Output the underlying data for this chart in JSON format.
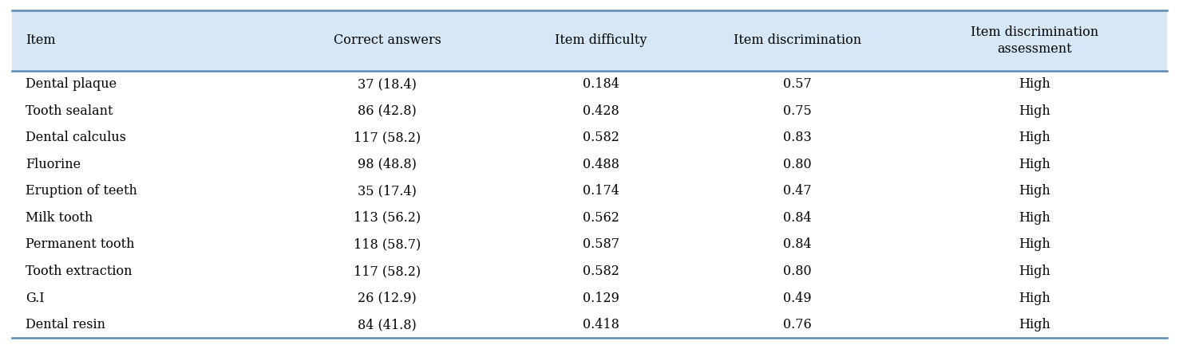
{
  "headers": [
    "Item",
    "Correct answers",
    "Item difficulty",
    "Item discrimination",
    "Item discrimination\nassessment"
  ],
  "rows": [
    [
      "Dental plaque",
      "37 (18.4)",
      "0.184",
      "0.57",
      "High"
    ],
    [
      "Tooth sealant",
      "86 (42.8)",
      "0.428",
      "0.75",
      "High"
    ],
    [
      "Dental calculus",
      "117 (58.2)",
      "0.582",
      "0.83",
      "High"
    ],
    [
      "Fluorine",
      "98 (48.8)",
      "0.488",
      "0.80",
      "High"
    ],
    [
      "Eruption of teeth",
      "35 (17.4)",
      "0.174",
      "0.47",
      "High"
    ],
    [
      "Milk tooth",
      "113 (56.2)",
      "0.562",
      "0.84",
      "High"
    ],
    [
      "Permanent tooth",
      "118 (58.7)",
      "0.587",
      "0.84",
      "High"
    ],
    [
      "Tooth extraction",
      "117 (58.2)",
      "0.582",
      "0.80",
      "High"
    ],
    [
      "G.I",
      "26 (12.9)",
      "0.129",
      "0.49",
      "High"
    ],
    [
      "Dental resin",
      "84 (41.8)",
      "0.418",
      "0.76",
      "High"
    ]
  ],
  "header_bg": "#d6e8f5",
  "bg_color": "#ffffff",
  "text_color": "#000000",
  "header_line_color": "#5a8ab0",
  "col_aligns": [
    "left",
    "center",
    "center",
    "center",
    "center"
  ],
  "figsize": [
    14.77,
    4.33
  ],
  "dpi": 100,
  "font_size": 11.5,
  "header_font_size": 11.5
}
